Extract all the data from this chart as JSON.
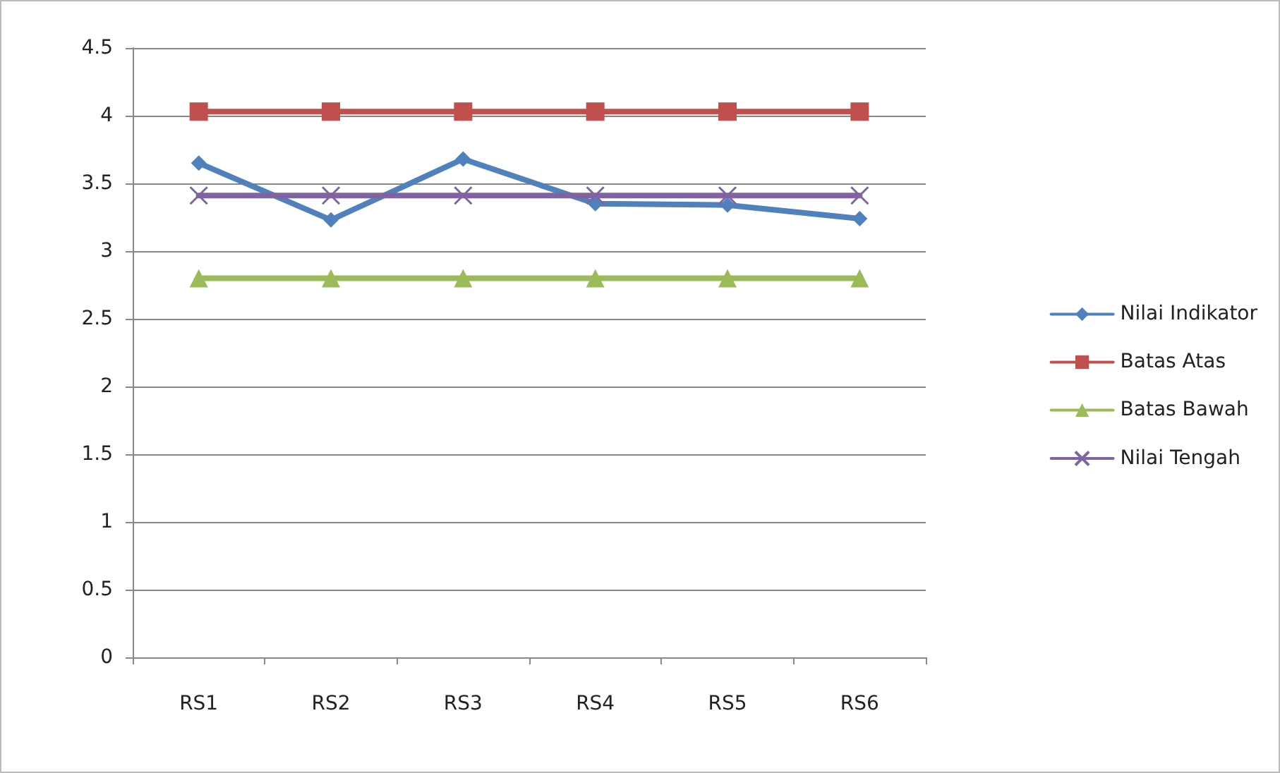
{
  "chart_data": {
    "type": "line",
    "categories": [
      "RS1",
      "RS2",
      "RS3",
      "RS4",
      "RS5",
      "RS6"
    ],
    "series": [
      {
        "name": "Nilai Indikator",
        "color": "#4f81bd",
        "marker": "diamond",
        "values": [
          3.65,
          3.23,
          3.68,
          3.35,
          3.34,
          3.24
        ]
      },
      {
        "name": "Batas Atas",
        "color": "#c0504d",
        "marker": "square",
        "values": [
          4.03,
          4.03,
          4.03,
          4.03,
          4.03,
          4.03
        ]
      },
      {
        "name": "Batas Bawah",
        "color": "#9bbb59",
        "marker": "triangle",
        "values": [
          2.8,
          2.8,
          2.8,
          2.8,
          2.8,
          2.8
        ]
      },
      {
        "name": "Nilai Tengah",
        "color": "#8064a2",
        "marker": "cross",
        "values": [
          3.41,
          3.41,
          3.41,
          3.41,
          3.41,
          3.41
        ]
      }
    ],
    "ylim": [
      0,
      4.5
    ],
    "yticks": [
      0,
      0.5,
      1,
      1.5,
      2,
      2.5,
      3,
      3.5,
      4,
      4.5
    ],
    "grid": "y",
    "legend": "right",
    "line_style": "solid"
  }
}
